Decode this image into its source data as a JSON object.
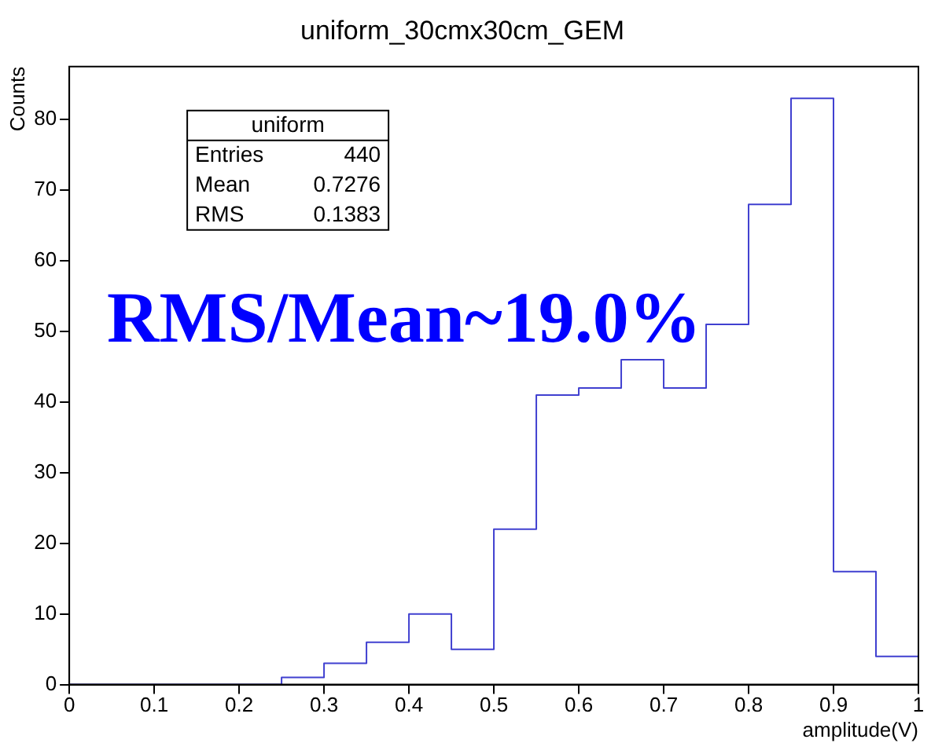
{
  "chart_data": {
    "type": "histogram",
    "title": "uniform_30cmx30cm_GEM",
    "xlabel": "amplitude(V)",
    "ylabel": "Counts",
    "bins": [
      0,
      0.05,
      0.1,
      0.15,
      0.2,
      0.25,
      0.3,
      0.35,
      0.4,
      0.45,
      0.5,
      0.55,
      0.6,
      0.65,
      0.7,
      0.75,
      0.8,
      0.85,
      0.9,
      0.95,
      1
    ],
    "values": [
      0,
      0,
      0,
      0,
      0,
      1,
      3,
      6,
      10,
      5,
      22,
      41,
      42,
      46,
      42,
      51,
      68,
      83,
      16,
      4
    ],
    "color": "#4040d0",
    "xlim": [
      0,
      1
    ],
    "xticks": [
      0,
      0.1,
      0.2,
      0.3,
      0.4,
      0.5,
      0.6,
      0.7,
      0.8,
      0.9,
      1
    ],
    "ylim": [
      0,
      87.5
    ],
    "yticks": [
      0,
      10,
      20,
      30,
      40,
      50,
      60,
      70,
      80
    ],
    "grid": false,
    "legend": false,
    "annotations": [
      "uniform",
      "Entries 440",
      "Mean 0.7276",
      "RMS 0.1383",
      "RMS/Mean~19.0%"
    ]
  }
}
